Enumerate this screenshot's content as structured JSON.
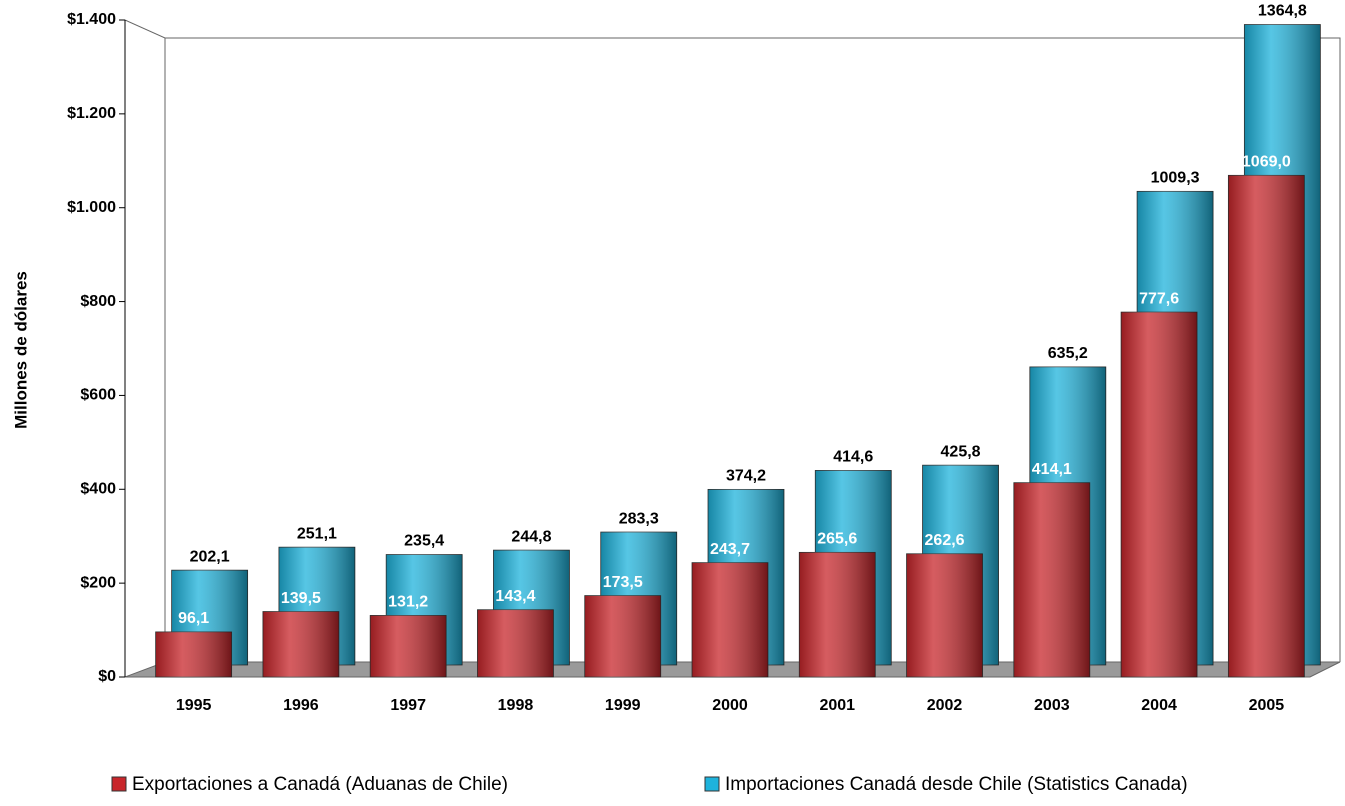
{
  "chart_data": {
    "type": "bar3d",
    "y_label": "Millones de dólares",
    "categories": [
      "1995",
      "1996",
      "1997",
      "1998",
      "1999",
      "2000",
      "2001",
      "2002",
      "2003",
      "2004",
      "2005"
    ],
    "series": [
      {
        "name": "Exportaciones a Canadá (Aduanas de Chile)",
        "color": "#c8262b",
        "values": [
          96.1,
          139.5,
          131.2,
          143.4,
          173.5,
          243.7,
          265.6,
          262.6,
          414.1,
          777.6,
          1069.0
        ],
        "value_labels": [
          "96,1",
          "139,5",
          "131,2",
          "143,4",
          "173,5",
          "243,7",
          "265,6",
          "262,6",
          "414,1",
          "777,6",
          "1069,0"
        ]
      },
      {
        "name": "Importaciones Canadá desde Chile (Statistics Canada)",
        "color": "#1eb3dc",
        "values": [
          202.1,
          251.1,
          235.4,
          244.8,
          283.3,
          374.2,
          414.6,
          425.8,
          635.2,
          1009.3,
          1364.8
        ],
        "value_labels": [
          "202,1",
          "251,1",
          "235,4",
          "244,8",
          "283,3",
          "374,2",
          "414,6",
          "425,8",
          "635,2",
          "1009,3",
          "1364,8"
        ]
      }
    ],
    "ylim": [
      0,
      1400
    ],
    "yticks": [
      {
        "value": 0,
        "label": "$0"
      },
      {
        "value": 200,
        "label": "$200"
      },
      {
        "value": 400,
        "label": "$400"
      },
      {
        "value": 600,
        "label": "$600"
      },
      {
        "value": 800,
        "label": "$800"
      },
      {
        "value": 1000,
        "label": "$1.000"
      },
      {
        "value": 1200,
        "label": "$1.200"
      },
      {
        "value": 1400,
        "label": "$1.400"
      }
    ]
  }
}
